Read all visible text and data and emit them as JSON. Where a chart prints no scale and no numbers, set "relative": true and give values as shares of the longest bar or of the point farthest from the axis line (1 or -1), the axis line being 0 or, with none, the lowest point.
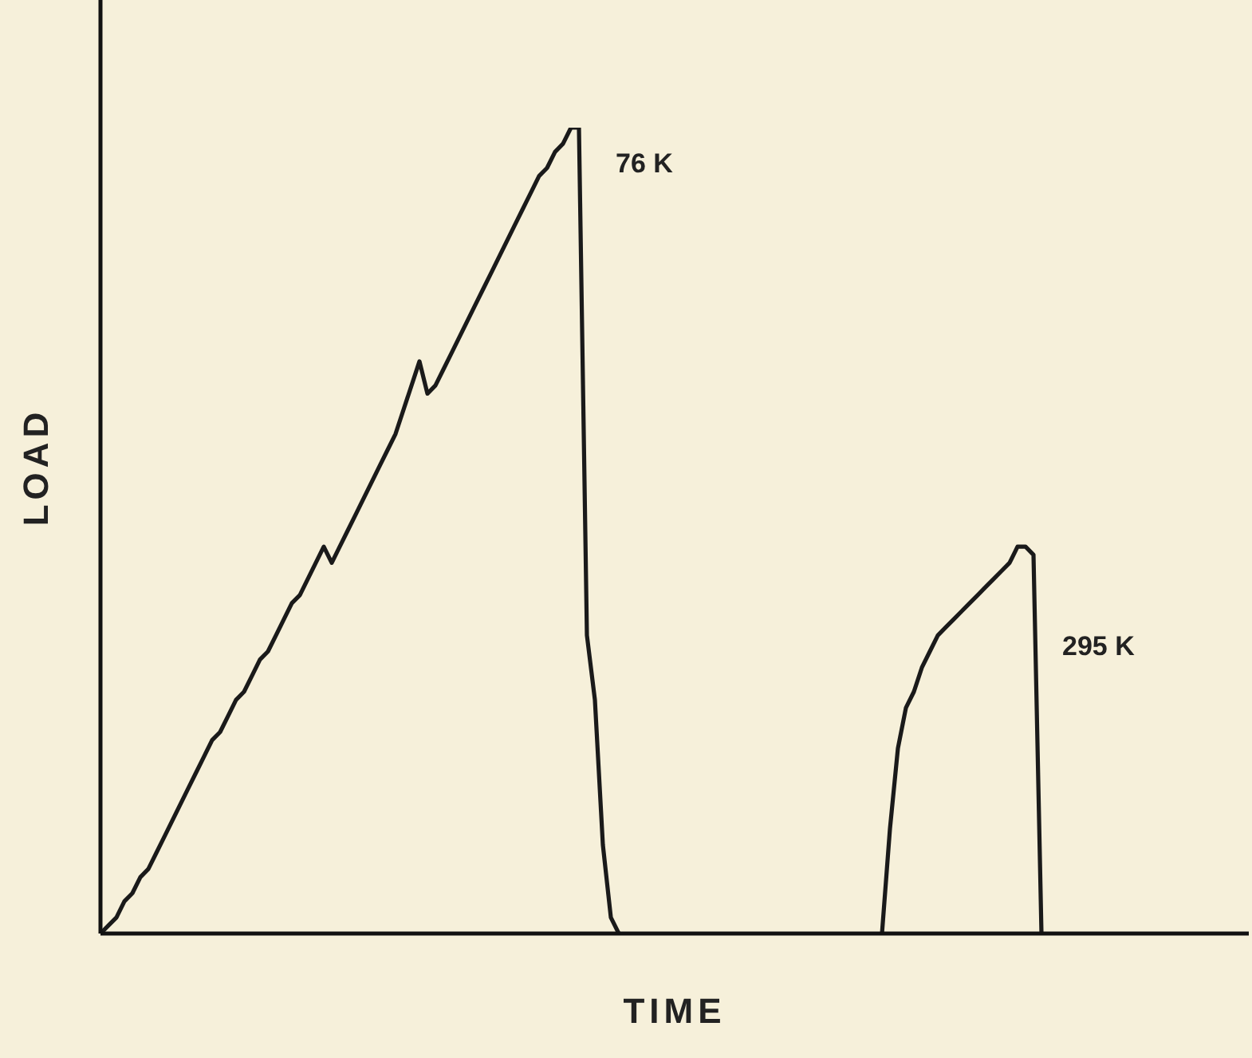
{
  "chart_data": {
    "type": "line",
    "relative": true,
    "xlabel": "TIME",
    "ylabel": "LOAD",
    "legend": false,
    "marker": "none",
    "categories": [
      null,
      null,
      null,
      null,
      null,
      null,
      null,
      null,
      null,
      null,
      null,
      null,
      null,
      null,
      null,
      null,
      null,
      null,
      null,
      null,
      null,
      null,
      null,
      null,
      null,
      null,
      null,
      null,
      null,
      null,
      null,
      null,
      null,
      null,
      null,
      null,
      null,
      null,
      null,
      null,
      null,
      null,
      null,
      null,
      null,
      null,
      null,
      null,
      null,
      null,
      null,
      null,
      null,
      null,
      null,
      null,
      null,
      null,
      null,
      null,
      null,
      null,
      null,
      null,
      null,
      null,
      null,
      null,
      null,
      null,
      null,
      null,
      null,
      null,
      null,
      null,
      null,
      null,
      null,
      null,
      null,
      null,
      null,
      null,
      null,
      null,
      null,
      null,
      null,
      null,
      null,
      null,
      null,
      null,
      null,
      null,
      null,
      null,
      null,
      null,
      null,
      null,
      null,
      null,
      null,
      null,
      null,
      null,
      null,
      null,
      null,
      null,
      null,
      null,
      null,
      null,
      null,
      null,
      null,
      null,
      null,
      null,
      null,
      null,
      null,
      null,
      null,
      null,
      null,
      null,
      null,
      null,
      null,
      null,
      null,
      null,
      null,
      null,
      null,
      null,
      null,
      null,
      null,
      null,
      null
    ],
    "series": [
      {
        "name": "76 K",
        "color": "#1a1a1a",
        "values": [
          0,
          0.01,
          0.02,
          0.04,
          0.05,
          0.07,
          0.08,
          0.1,
          0.12,
          0.14,
          0.16,
          0.18,
          0.2,
          0.22,
          0.24,
          0.25,
          0.27,
          0.29,
          0.3,
          0.32,
          0.34,
          0.35,
          0.37,
          0.39,
          0.41,
          0.42,
          0.44,
          0.46,
          0.48,
          0.46,
          0.48,
          0.5,
          0.52,
          0.54,
          0.56,
          0.58,
          0.6,
          0.62,
          0.65,
          0.68,
          0.71,
          0.67,
          0.68,
          0.7,
          0.72,
          0.74,
          0.76,
          0.78,
          0.8,
          0.82,
          0.84,
          0.86,
          0.88,
          0.9,
          0.92,
          0.94,
          0.95,
          0.97,
          0.98,
          1,
          1,
          0.37,
          0.29,
          0.11,
          0.02,
          0,
          null,
          null,
          null,
          null,
          null,
          null,
          null,
          null,
          null,
          null,
          null,
          null,
          null,
          null,
          null,
          null,
          null,
          null,
          null,
          null,
          null,
          null,
          null,
          null,
          null,
          null,
          null,
          null,
          null,
          null,
          null,
          null,
          null,
          null,
          null,
          null,
          null,
          null,
          null,
          null,
          null,
          null,
          null,
          null,
          null,
          null,
          null,
          null,
          null,
          null,
          null,
          null,
          null,
          null,
          null,
          null,
          null,
          null,
          null,
          null,
          null,
          null,
          null,
          null,
          null,
          null,
          null,
          null,
          null,
          null,
          null,
          null,
          null,
          null,
          null,
          null,
          null,
          null,
          null
        ]
      },
      {
        "name": "295 K",
        "color": "#1a1a1a",
        "values": [
          null,
          null,
          null,
          null,
          null,
          null,
          null,
          null,
          null,
          null,
          null,
          null,
          null,
          null,
          null,
          null,
          null,
          null,
          null,
          null,
          null,
          null,
          null,
          null,
          null,
          null,
          null,
          null,
          null,
          null,
          null,
          null,
          null,
          null,
          null,
          null,
          null,
          null,
          null,
          null,
          null,
          null,
          null,
          null,
          null,
          null,
          null,
          null,
          null,
          null,
          null,
          null,
          null,
          null,
          null,
          null,
          null,
          null,
          null,
          null,
          null,
          null,
          null,
          null,
          null,
          null,
          null,
          null,
          null,
          null,
          null,
          null,
          null,
          null,
          null,
          null,
          null,
          null,
          null,
          null,
          null,
          null,
          null,
          null,
          null,
          null,
          null,
          null,
          null,
          null,
          null,
          null,
          null,
          null,
          null,
          null,
          null,
          null,
          0,
          0.13,
          0.23,
          0.28,
          0.3,
          0.33,
          0.35,
          0.37,
          0.38,
          0.39,
          0.4,
          0.41,
          0.42,
          0.43,
          0.44,
          0.45,
          0.46,
          0.48,
          0.48,
          0.47,
          0,
          null,
          null,
          null,
          null,
          null,
          null,
          null,
          null,
          null,
          null,
          null,
          null,
          null,
          null,
          null,
          null,
          null,
          null,
          null,
          null,
          null,
          null,
          null,
          null,
          null,
          null
        ]
      }
    ]
  }
}
